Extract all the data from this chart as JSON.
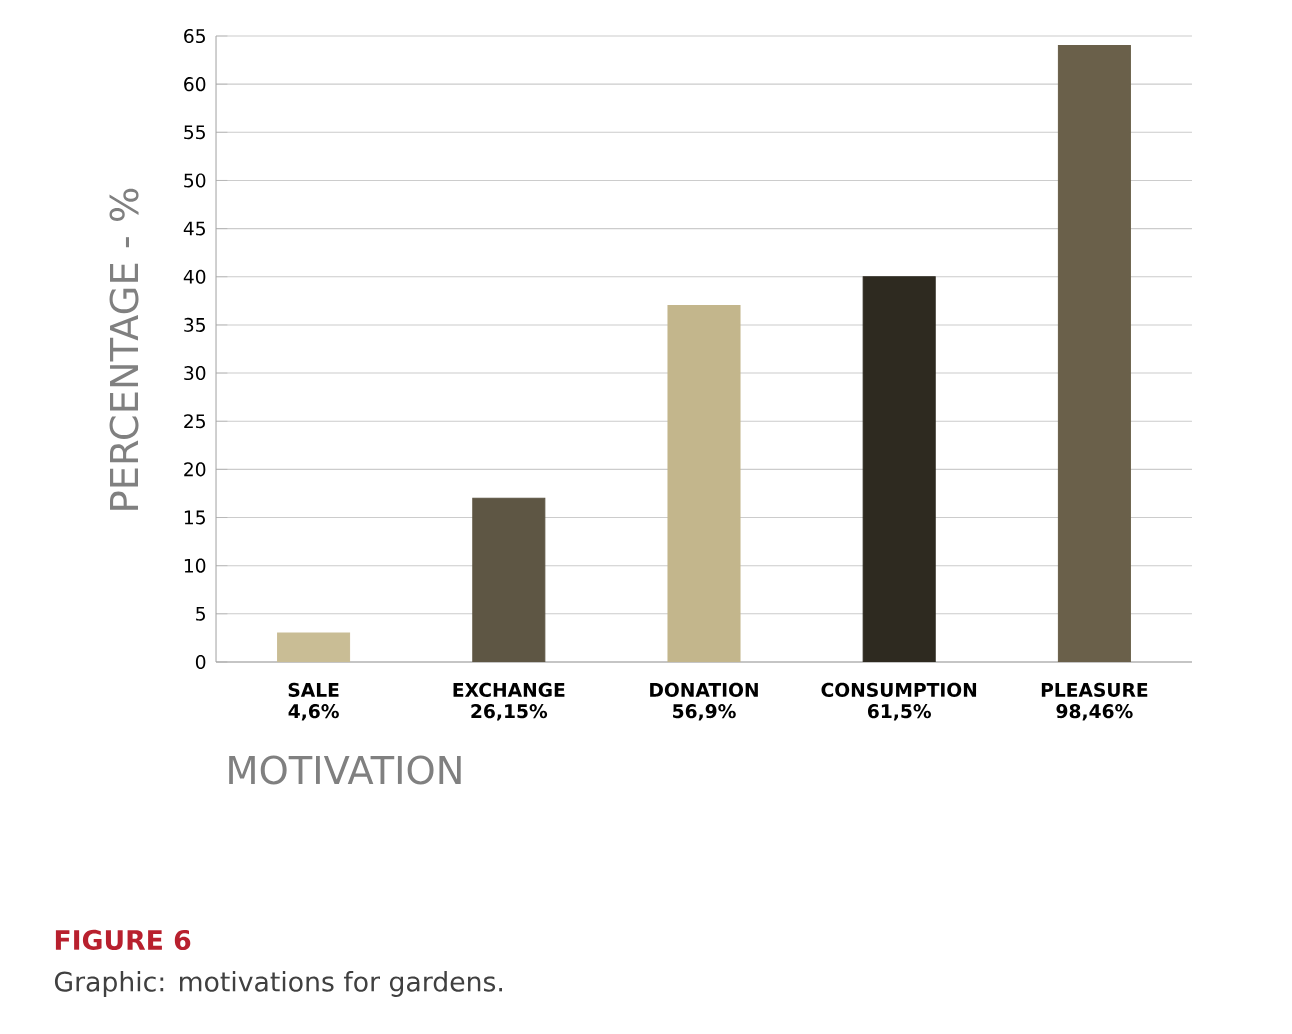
{
  "chart_data": {
    "type": "bar",
    "categories": [
      "SALE 4,6%",
      "EXCHANGE 26,15%",
      "DONATION 56,9%",
      "CONSUMPTION 61,5%",
      "PLEASURE 98,46%"
    ],
    "values": [
      3,
      17,
      37,
      40,
      64
    ],
    "colors": [
      "#c9bd95",
      "#5e5644",
      "#c3b68c",
      "#2e2a20",
      "#6a604a"
    ],
    "ylabel": "PERCENTAGE - %",
    "xlabel": "MOTIVATION",
    "ylim": [
      0,
      65
    ],
    "yticks": [
      0,
      5,
      10,
      15,
      20,
      25,
      30,
      35,
      40,
      45,
      50,
      55,
      60,
      65
    ],
    "grid": "y",
    "annotations": [
      "FIGURE 6",
      "Graphic: motivations for gardens."
    ]
  }
}
